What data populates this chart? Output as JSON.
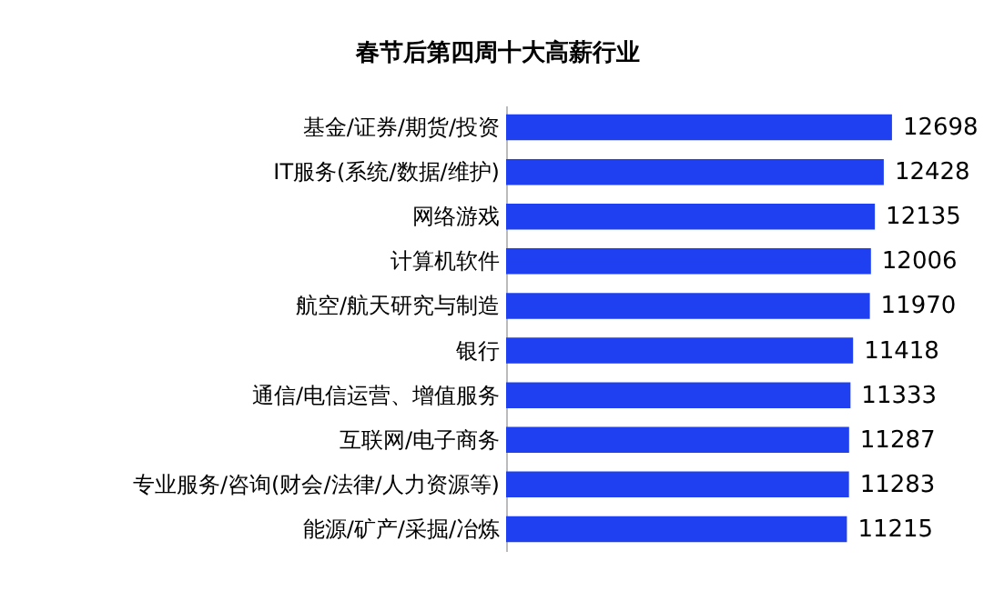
{
  "chart_data": {
    "type": "bar",
    "orientation": "horizontal",
    "title": "春节后第四周十大高薪行业",
    "categories": [
      "基金/证券/期货/投资",
      "IT服务(系统/数据/维护)",
      "网络游戏",
      "计算机软件",
      "航空/航天研究与制造",
      "银行",
      "通信/电信运营、增值服务",
      "互联网/电子商务",
      "专业服务/咨询(财会/法律/人力资源等)",
      "能源/矿产/采掘/冶炼"
    ],
    "values": [
      12698,
      12428,
      12135,
      12006,
      11970,
      11418,
      11333,
      11287,
      11283,
      11215
    ],
    "color": "#1e40f0",
    "tick_labels": "y",
    "data_labels": true
  }
}
